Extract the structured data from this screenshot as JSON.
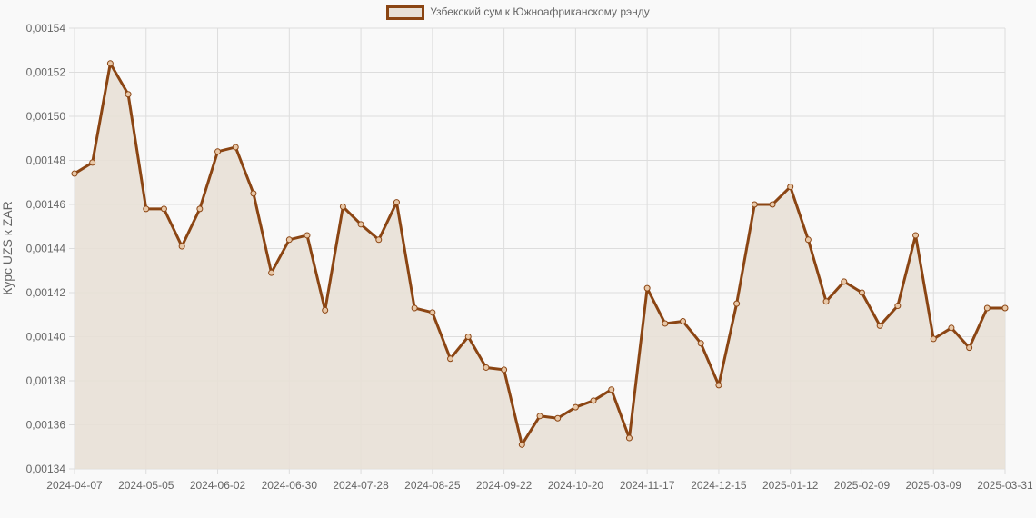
{
  "chart_data": {
    "type": "line",
    "title": "",
    "legend": [
      "Узбекский сум к Южноафриканскому рэнду"
    ],
    "legend_position": "top",
    "xlabel": "",
    "ylabel": "Курс UZS к ZAR",
    "ylim": [
      0.00134,
      0.00154
    ],
    "yticks": [
      "0,00134",
      "0,00136",
      "0,00138",
      "0,00140",
      "0,00142",
      "0,00144",
      "0,00146",
      "0,00148",
      "0,00150",
      "0,00152",
      "0,00154"
    ],
    "xticks": [
      "2024-04-07",
      "2024-05-05",
      "2024-06-02",
      "2024-06-30",
      "2024-07-28",
      "2024-08-25",
      "2024-09-22",
      "2024-10-20",
      "2024-11-17",
      "2024-12-15",
      "2025-01-12",
      "2025-02-09",
      "2025-03-09",
      "2025-03-31"
    ],
    "grid": true,
    "fill": true,
    "colors": {
      "line": "#8b4513",
      "fill": "#e8e0d6"
    },
    "series": [
      {
        "name": "Узбекский сум к Южноафриканскому рэнду",
        "values": [
          0.001474,
          0.001479,
          0.001524,
          0.00151,
          0.001458,
          0.001458,
          0.001441,
          0.001458,
          0.001484,
          0.001486,
          0.001465,
          0.001429,
          0.001444,
          0.001446,
          0.001412,
          0.001459,
          0.001451,
          0.001444,
          0.001461,
          0.001413,
          0.001411,
          0.00139,
          0.0014,
          0.001386,
          0.001385,
          0.001351,
          0.001364,
          0.001363,
          0.001368,
          0.001371,
          0.001376,
          0.001354,
          0.001422,
          0.001406,
          0.001407,
          0.001397,
          0.001378,
          0.001415,
          0.00146,
          0.00146,
          0.001468,
          0.001444,
          0.001416,
          0.001425,
          0.00142,
          0.001405,
          0.001414,
          0.001446,
          0.001399,
          0.001404,
          0.001395,
          0.001413,
          0.001413
        ]
      }
    ]
  }
}
